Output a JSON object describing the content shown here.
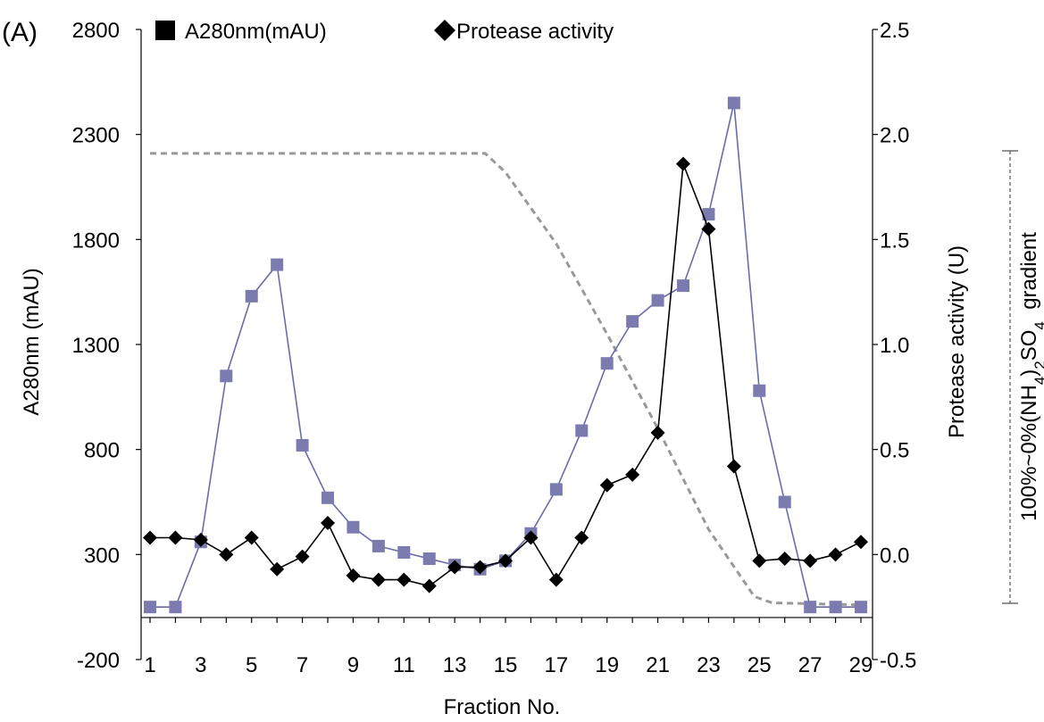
{
  "panel_label": "(A)",
  "gradient_label": {
    "prefix": "100%~0%(NH",
    "sub1": "4",
    "mid": ")",
    "sub2": "2",
    "suffix": "SO",
    "sub3": "4",
    "tail": "  gradient"
  },
  "colors": {
    "a280_line": "#6b6ba8",
    "a280_marker": "#7b7bb0",
    "protease": "#000000",
    "gradient": "#999999",
    "axis": "#000000"
  },
  "chart_data": {
    "type": "line",
    "xlabel": "Fraction No.",
    "ylabel_left": "A280nm (mAU)",
    "ylabel_right": "Protease activity (U)",
    "x": [
      1,
      2,
      3,
      4,
      5,
      6,
      7,
      8,
      9,
      10,
      11,
      12,
      13,
      14,
      15,
      16,
      17,
      18,
      19,
      20,
      21,
      22,
      23,
      24,
      25,
      26,
      27,
      28,
      29
    ],
    "x_ticks": [
      "1",
      "3",
      "5",
      "7",
      "9",
      "11",
      "13",
      "15",
      "17",
      "19",
      "21",
      "23",
      "25",
      "27",
      "29"
    ],
    "xlim": [
      1,
      29
    ],
    "ylim_left": [
      -200,
      2800
    ],
    "ylim_right": [
      -0.5,
      2.5
    ],
    "y_ticks_left": [
      "-200",
      "300",
      "800",
      "1300",
      "1800",
      "2300",
      "2800"
    ],
    "y_ticks_right": [
      "-0.5",
      "0.0",
      "0.5",
      "1.0",
      "1.5",
      "2.0",
      "2.5"
    ],
    "series": [
      {
        "name": "A280nm(mAU)",
        "axis": "left",
        "marker": "square",
        "values": [
          50,
          50,
          360,
          1150,
          1530,
          1680,
          820,
          570,
          430,
          340,
          310,
          280,
          250,
          230,
          270,
          400,
          610,
          890,
          1210,
          1410,
          1510,
          1580,
          1920,
          2450,
          1080,
          550,
          50,
          50,
          50
        ]
      },
      {
        "name": "Protease activity",
        "axis": "right",
        "marker": "diamond",
        "values": [
          0.08,
          0.08,
          0.07,
          0.0,
          0.08,
          -0.07,
          -0.01,
          0.15,
          -0.1,
          -0.12,
          -0.12,
          -0.15,
          -0.06,
          -0.06,
          -0.03,
          0.08,
          -0.12,
          0.08,
          0.33,
          0.38,
          0.58,
          1.86,
          1.55,
          0.42,
          -0.03,
          -0.02,
          -0.03,
          0.0,
          0.06
        ]
      }
    ],
    "gradient": {
      "axis": "right",
      "x": [
        1,
        14.2,
        15,
        17,
        19,
        21,
        23,
        24.8,
        25.5,
        29
      ],
      "values": [
        1.91,
        1.91,
        1.82,
        1.48,
        1.05,
        0.6,
        0.12,
        -0.2,
        -0.23,
        -0.24
      ]
    },
    "grid": false
  }
}
